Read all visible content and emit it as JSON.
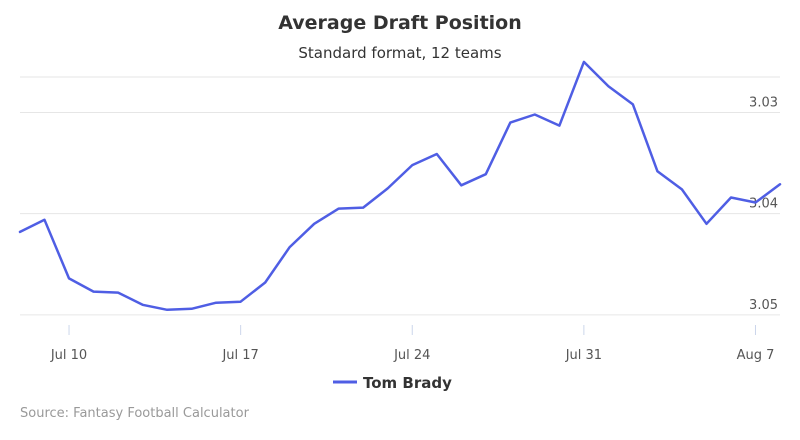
{
  "chart_data": {
    "type": "line",
    "title": "Average Draft Position",
    "subtitle": "Standard format, 12 teams",
    "x_ticks": [
      "Jul 10",
      "Jul 17",
      "Jul 24",
      "Jul 31",
      "Aug 7"
    ],
    "y_ticks": [
      "3.03",
      "3.04",
      "3.05"
    ],
    "y_reversed": true,
    "ylim": [
      3.026,
      3.051
    ],
    "xlim": [
      "Jul 8",
      "Aug 8"
    ],
    "grid": true,
    "legend_position": "bottom-center",
    "series": [
      {
        "name": "Tom Brady",
        "color": "#4f5ee4",
        "x": [
          "Jul 8",
          "Jul 9",
          "Jul 10",
          "Jul 11",
          "Jul 12",
          "Jul 13",
          "Jul 14",
          "Jul 15",
          "Jul 16",
          "Jul 17",
          "Jul 18",
          "Jul 19",
          "Jul 20",
          "Jul 21",
          "Jul 22",
          "Jul 23",
          "Jul 24",
          "Jul 25",
          "Jul 26",
          "Jul 27",
          "Jul 28",
          "Jul 29",
          "Jul 30",
          "Jul 31",
          "Aug 1",
          "Aug 2",
          "Aug 3",
          "Aug 4",
          "Aug 5",
          "Aug 6",
          "Aug 7",
          "Aug 8"
        ],
        "values": [
          3.0418,
          3.0406,
          3.0464,
          3.0477,
          3.0478,
          3.049,
          3.0495,
          3.0494,
          3.0488,
          3.0487,
          3.0468,
          3.0433,
          3.041,
          3.0395,
          3.0394,
          3.0375,
          3.0352,
          3.0341,
          3.0372,
          3.0361,
          3.031,
          3.0302,
          3.0313,
          3.025,
          3.0274,
          3.0292,
          3.0358,
          3.0376,
          3.041,
          3.0384,
          3.0389,
          3.0371
        ]
      }
    ]
  },
  "credits": "Source: Fantasy Football Calculator"
}
